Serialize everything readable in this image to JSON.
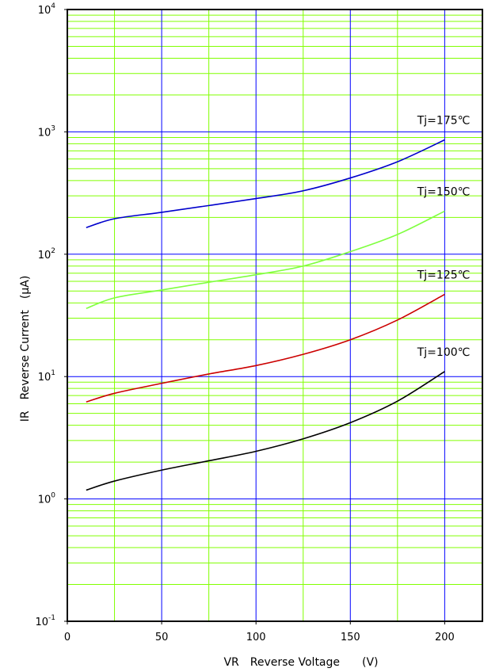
{
  "chart_data": {
    "type": "line",
    "xlabel": "VR　Reverse Voltage　　(V)",
    "ylabel": "IR　Reverse Current　(μA)",
    "xlim": [
      0,
      220
    ],
    "ylim": [
      0.1,
      10000
    ],
    "yscale": "log",
    "x_ticks": [
      0,
      50,
      100,
      150,
      200
    ],
    "x_tick_labels": [
      "0",
      "50",
      "100",
      "150",
      "200"
    ],
    "y_ticks": [
      0.1,
      1,
      10,
      100,
      1000,
      10000
    ],
    "y_tick_labels": [
      {
        "base": "10",
        "exp": "-1"
      },
      {
        "base": "10",
        "exp": "0"
      },
      {
        "base": "10",
        "exp": "1"
      },
      {
        "base": "10",
        "exp": "2"
      },
      {
        "base": "10",
        "exp": "3"
      },
      {
        "base": "10",
        "exp": "4"
      }
    ],
    "grid": true,
    "colors": {
      "major_grid": "#0000ff",
      "minor_grid": "#80ff00",
      "axis": "#000000"
    },
    "series": [
      {
        "name": "Tj=175℃",
        "color": "#0000cc",
        "x": [
          10,
          25,
          50,
          75,
          100,
          125,
          150,
          175,
          200
        ],
        "y": [
          165,
          195,
          220,
          250,
          285,
          330,
          420,
          570,
          860
        ]
      },
      {
        "name": "Tj=150℃",
        "color": "#80ff40",
        "x": [
          10,
          25,
          50,
          75,
          100,
          125,
          150,
          175,
          200
        ],
        "y": [
          36,
          44,
          51,
          59,
          68,
          80,
          105,
          145,
          225
        ]
      },
      {
        "name": "Tj=125℃",
        "color": "#cc0000",
        "x": [
          10,
          25,
          50,
          75,
          100,
          125,
          150,
          175,
          200
        ],
        "y": [
          6.2,
          7.3,
          8.8,
          10.5,
          12.3,
          15.2,
          20,
          29,
          47
        ]
      },
      {
        "name": "Tj=100℃",
        "color": "#000000",
        "x": [
          10,
          25,
          50,
          75,
          100,
          125,
          150,
          175,
          200
        ],
        "y": [
          1.18,
          1.4,
          1.72,
          2.05,
          2.45,
          3.1,
          4.2,
          6.3,
          11
        ]
      }
    ]
  }
}
